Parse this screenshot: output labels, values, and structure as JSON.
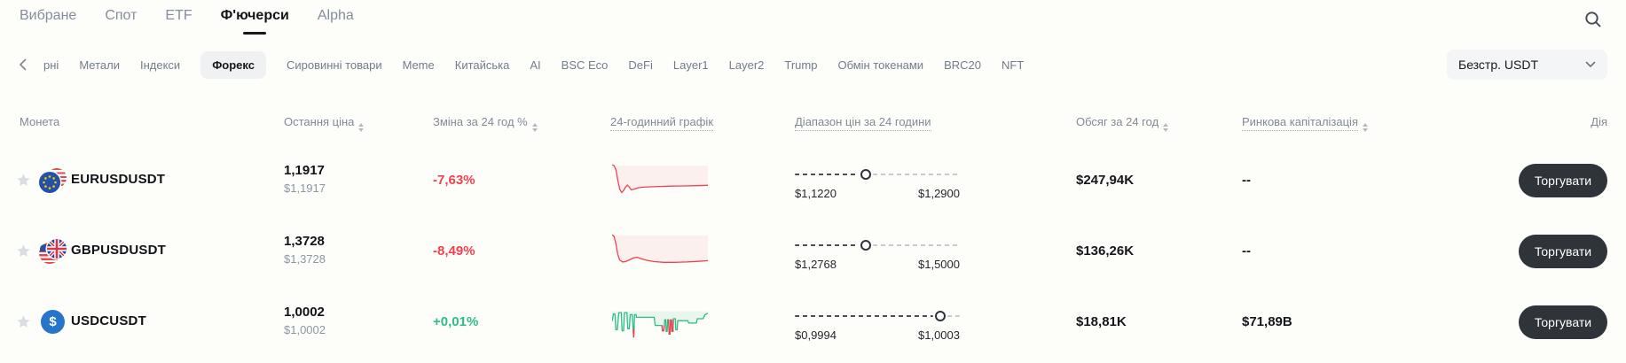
{
  "colors": {
    "red": "#F0424E",
    "green": "#2EBD85",
    "button_bg": "#2F343B",
    "accent_dark": "#17181B"
  },
  "topnav": {
    "tabs": [
      {
        "label": "Вибране",
        "active": false
      },
      {
        "label": "Спот",
        "active": false
      },
      {
        "label": "ETF",
        "active": false
      },
      {
        "label": "Ф'ючерси",
        "active": true
      },
      {
        "label": "Alpha",
        "active": false
      }
    ]
  },
  "categories": {
    "items": [
      {
        "label": "рні",
        "selected": false
      },
      {
        "label": "Метали",
        "selected": false
      },
      {
        "label": "Індекси",
        "selected": false
      },
      {
        "label": "Форекс",
        "selected": true
      },
      {
        "label": "Сировинні товари",
        "selected": false
      },
      {
        "label": "Meme",
        "selected": false
      },
      {
        "label": "Китайська",
        "selected": false
      },
      {
        "label": "AI",
        "selected": false
      },
      {
        "label": "BSC Eco",
        "selected": false
      },
      {
        "label": "DeFi",
        "selected": false
      },
      {
        "label": "Layer1",
        "selected": false
      },
      {
        "label": "Layer2",
        "selected": false
      },
      {
        "label": "Trump",
        "selected": false
      },
      {
        "label": "Обмін токенами",
        "selected": false
      },
      {
        "label": "BRC20",
        "selected": false
      },
      {
        "label": "NFT",
        "selected": false
      }
    ],
    "contract_filter": {
      "value": "Безстр. USDT"
    }
  },
  "table": {
    "columns": [
      {
        "key": "coin",
        "label": "Монета",
        "sort": false,
        "dotted": false
      },
      {
        "key": "last_price",
        "label": "Остання ціна",
        "sort": true,
        "dotted": false
      },
      {
        "key": "change_24h",
        "label": "Зміна за 24 год %",
        "sort": true,
        "dotted": false
      },
      {
        "key": "chart_24h",
        "label": "24-годинний графік",
        "sort": false,
        "dotted": true
      },
      {
        "key": "range_24h",
        "label": "Діапазон цін за 24 години",
        "sort": false,
        "dotted": true
      },
      {
        "key": "volume_24h",
        "label": "Обсяг за 24 год",
        "sort": true,
        "dotted": false
      },
      {
        "key": "market_cap",
        "label": "Ринкова капіталізація",
        "sort": true,
        "dotted": true
      },
      {
        "key": "action",
        "label": "Дія",
        "sort": false,
        "dotted": false
      }
    ],
    "rows": [
      {
        "symbol": "EURUSDUSDT",
        "icon": "eurusd-pair-icon",
        "price": "1,1917",
        "price_usd": "$1,1917",
        "change": "-7,63%",
        "range": {
          "low": "$1,1220",
          "high": "$1,2900",
          "position_pct": 43
        },
        "volume_24h": "$247,94K",
        "market_cap": "--",
        "action_label": "Торгувати",
        "spark": {
          "color": "#F0424E",
          "fill_top": 0.08,
          "fill_color": "rgba(240,66,78,0.07)",
          "points": [
            [
              0,
              0.06
            ],
            [
              0.02,
              0.08
            ],
            [
              0.04,
              0.2
            ],
            [
              0.06,
              0.52
            ],
            [
              0.08,
              0.78
            ],
            [
              0.1,
              0.88
            ],
            [
              0.12,
              0.82
            ],
            [
              0.14,
              0.72
            ],
            [
              0.16,
              0.66
            ],
            [
              0.18,
              0.72
            ],
            [
              0.2,
              0.8
            ],
            [
              0.23,
              0.78
            ],
            [
              0.27,
              0.74
            ],
            [
              0.33,
              0.72
            ],
            [
              0.4,
              0.71
            ],
            [
              0.5,
              0.7
            ],
            [
              0.62,
              0.69
            ],
            [
              0.75,
              0.685
            ],
            [
              0.88,
              0.675
            ],
            [
              1,
              0.665
            ]
          ],
          "overlays": []
        }
      },
      {
        "symbol": "GBPUSDUSDT",
        "icon": "gbpusd-pair-icon",
        "price": "1,3728",
        "price_usd": "$1,3728",
        "change": "-8,49%",
        "range": {
          "low": "$1,2768",
          "high": "$1,5000",
          "position_pct": 43
        },
        "volume_24h": "$136,26K",
        "market_cap": "--",
        "action_label": "Торгувати",
        "spark": {
          "color": "#F0424E",
          "fill_top": 0.05,
          "fill_color": "rgba(240,66,78,0.07)",
          "points": [
            [
              0,
              0.03
            ],
            [
              0.02,
              0.08
            ],
            [
              0.04,
              0.3
            ],
            [
              0.06,
              0.62
            ],
            [
              0.08,
              0.78
            ],
            [
              0.11,
              0.84
            ],
            [
              0.14,
              0.83
            ],
            [
              0.18,
              0.78
            ],
            [
              0.22,
              0.72
            ],
            [
              0.26,
              0.7
            ],
            [
              0.3,
              0.74
            ],
            [
              0.36,
              0.79
            ],
            [
              0.44,
              0.83
            ],
            [
              0.54,
              0.85
            ],
            [
              0.66,
              0.85
            ],
            [
              0.78,
              0.84
            ],
            [
              0.9,
              0.82
            ],
            [
              1,
              0.8
            ]
          ],
          "overlays": []
        }
      },
      {
        "symbol": "USDCUSDT",
        "icon": "usdc-icon",
        "price": "1,0002",
        "price_usd": "$1,0002",
        "change": "+0,01%",
        "range": {
          "low": "$0,9994",
          "high": "$1,0003",
          "position_pct": 88
        },
        "volume_24h": "$18,81K",
        "market_cap": "$71,89B",
        "action_label": "Торгувати",
        "spark": {
          "color": "#2EBD85",
          "fill_top": 0.2,
          "fill_color": "rgba(46,189,133,0.10)",
          "points": [
            [
              0,
              0.5
            ],
            [
              0.015,
              0.28
            ],
            [
              0.03,
              0.28
            ],
            [
              0.04,
              0.75
            ],
            [
              0.055,
              0.75
            ],
            [
              0.07,
              0.24
            ],
            [
              0.095,
              0.24
            ],
            [
              0.105,
              0.78
            ],
            [
              0.12,
              0.78
            ],
            [
              0.13,
              0.24
            ],
            [
              0.155,
              0.24
            ],
            [
              0.165,
              0.72
            ],
            [
              0.18,
              0.72
            ],
            [
              0.19,
              0.3
            ],
            [
              0.21,
              0.3
            ],
            [
              0.22,
              0.72
            ],
            [
              0.225,
              0.98
            ],
            [
              0.23,
              0.72
            ],
            [
              0.235,
              0.3
            ],
            [
              0.25,
              0.3
            ],
            [
              0.255,
              0.38
            ],
            [
              0.44,
              0.38
            ],
            [
              0.45,
              0.62
            ],
            [
              0.52,
              0.62
            ],
            [
              0.525,
              0.78
            ],
            [
              0.54,
              0.78
            ],
            [
              0.545,
              0.62
            ],
            [
              0.55,
              0.45
            ],
            [
              0.56,
              0.45
            ],
            [
              0.565,
              0.8
            ],
            [
              0.575,
              0.8
            ],
            [
              0.58,
              0.45
            ],
            [
              0.59,
              0.45
            ],
            [
              0.595,
              0.88
            ],
            [
              0.605,
              0.88
            ],
            [
              0.61,
              0.45
            ],
            [
              0.62,
              0.45
            ],
            [
              0.625,
              0.8
            ],
            [
              0.635,
              0.8
            ],
            [
              0.64,
              0.42
            ],
            [
              0.66,
              0.42
            ],
            [
              0.665,
              0.75
            ],
            [
              0.68,
              0.75
            ],
            [
              0.685,
              0.48
            ],
            [
              0.79,
              0.48
            ],
            [
              0.8,
              0.55
            ],
            [
              0.88,
              0.55
            ],
            [
              0.89,
              0.42
            ],
            [
              0.95,
              0.42
            ],
            [
              0.97,
              0.3
            ],
            [
              1,
              0.26
            ]
          ],
          "overlays": [
            {
              "color": "#F0424E",
              "points": [
                [
                  0.22,
                  0.72
                ],
                [
                  0.225,
                  0.98
                ],
                [
                  0.23,
                  0.72
                ]
              ]
            },
            {
              "color": "#F0424E",
              "points": [
                [
                  0.52,
                  0.62
                ],
                [
                  0.525,
                  0.78
                ],
                [
                  0.54,
                  0.78
                ],
                [
                  0.545,
                  0.62
                ]
              ]
            },
            {
              "color": "#F0424E",
              "points": [
                [
                  0.59,
                  0.45
                ],
                [
                  0.595,
                  0.88
                ],
                [
                  0.605,
                  0.88
                ],
                [
                  0.61,
                  0.45
                ]
              ]
            },
            {
              "color": "#F0424E",
              "points": [
                [
                  0.62,
                  0.45
                ],
                [
                  0.625,
                  0.8
                ],
                [
                  0.635,
                  0.8
                ],
                [
                  0.64,
                  0.45
                ]
              ]
            }
          ]
        }
      }
    ]
  }
}
